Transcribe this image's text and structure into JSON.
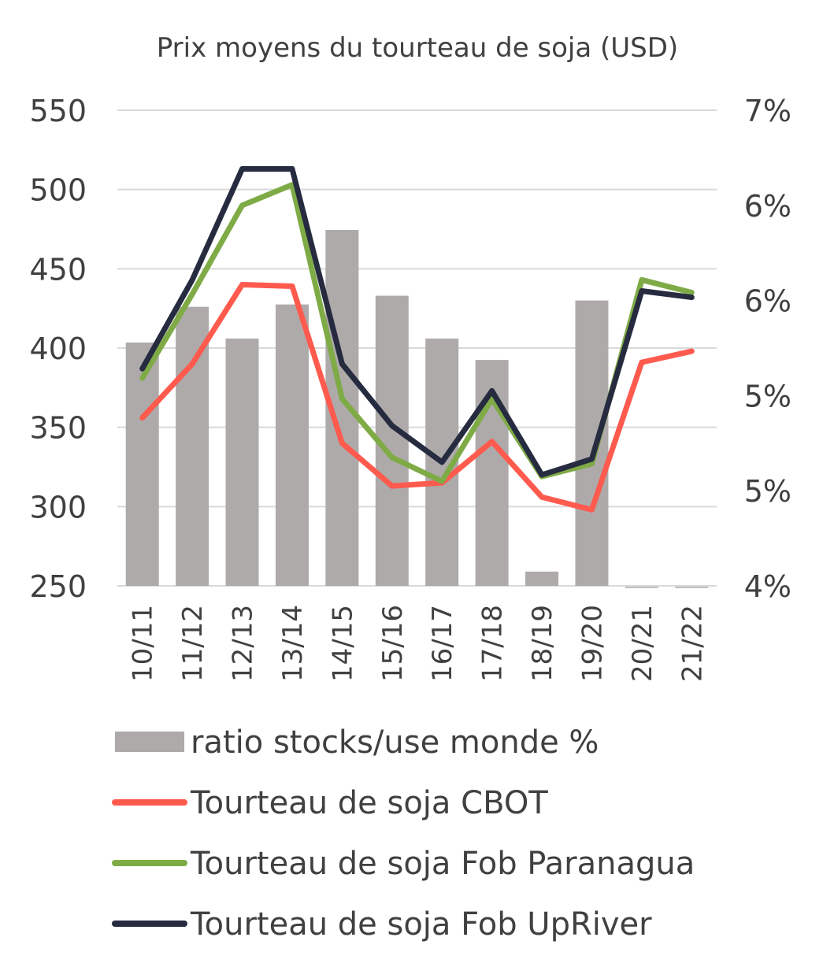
{
  "chart_data": {
    "type": "bar+line",
    "title": "Prix moyens du tourteau de soja (USD)",
    "categories": [
      "10/11",
      "11/12",
      "12/13",
      "13/14",
      "14/15",
      "15/16",
      "16/17",
      "17/18",
      "18/19",
      "19/20",
      "20/21",
      "21/22"
    ],
    "y_left": {
      "ylim": [
        250,
        550
      ],
      "ticks": [
        "250",
        "300",
        "350",
        "400",
        "450",
        "500",
        "550"
      ]
    },
    "y_right": {
      "ylim": [
        4,
        7
      ],
      "ticks": [
        "4%",
        "5%",
        "5%",
        "6%",
        "6%",
        "7%"
      ]
    },
    "grid": true,
    "legend_position": "bottom",
    "bars": {
      "name": "ratio stocks/use monde %",
      "axis": "right",
      "color": "#aeaaaa",
      "values": [
        5.535,
        5.76,
        5.56,
        5.775,
        6.245,
        5.83,
        5.56,
        5.425,
        4.09,
        5.8,
        null,
        null
      ]
    },
    "series": [
      {
        "name": "Tourteau de soja CBOT",
        "axis": "left",
        "color": "#ff5a4e",
        "values": [
          356,
          390,
          440,
          439,
          340,
          313,
          315,
          341,
          306,
          298,
          391,
          398
        ]
      },
      {
        "name": "Tourteau de soja Fob Paranagua",
        "axis": "left",
        "color": "#7fab47",
        "values": [
          381,
          434,
          490,
          503,
          368,
          331,
          316,
          368,
          319,
          327,
          443,
          435
        ]
      },
      {
        "name": "Tourteau de soja Fob UpRiver",
        "axis": "left",
        "color": "#262b40",
        "values": [
          387,
          443,
          513,
          513,
          390,
          351,
          328,
          373,
          320,
          330,
          436,
          432
        ]
      }
    ]
  }
}
